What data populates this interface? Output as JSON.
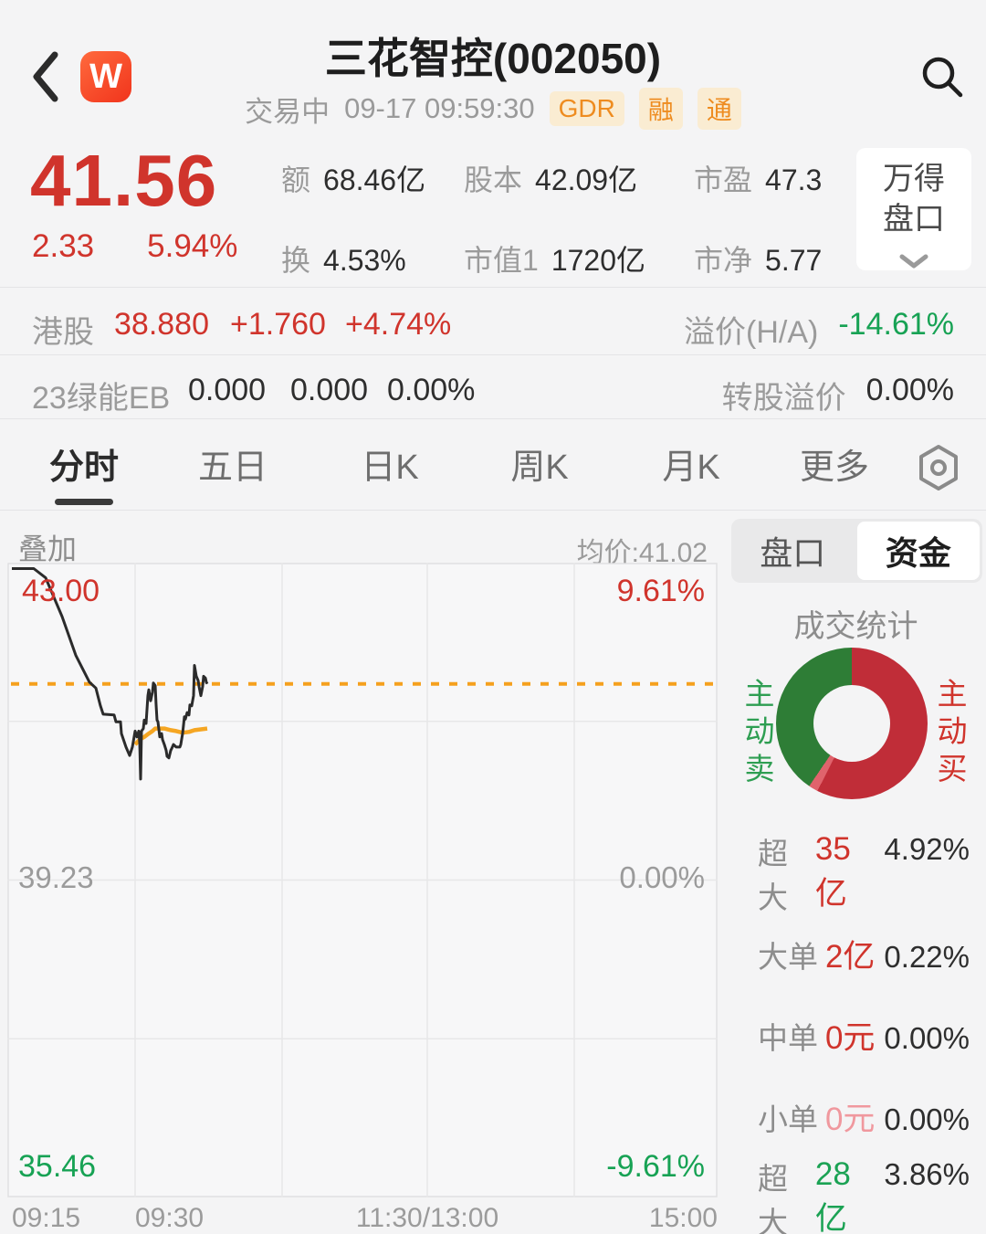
{
  "header": {
    "logo_text": "W",
    "title": "三花智控(002050)",
    "status": "交易中",
    "datetime": "09-17 09:59:30",
    "badges": [
      "GDR",
      "融",
      "通"
    ]
  },
  "quote": {
    "price": "41.56",
    "change": "2.33",
    "change_pct": "5.94%",
    "stats": [
      {
        "label": "额",
        "value": "68.46亿"
      },
      {
        "label": "股本",
        "value": "42.09亿"
      },
      {
        "label": "市盈",
        "value": "47.3"
      },
      {
        "label": "换",
        "value": "4.53%"
      },
      {
        "label": "市值1",
        "value": "1720亿"
      },
      {
        "label": "市净",
        "value": "5.77"
      }
    ],
    "wind_box": {
      "line1": "万得",
      "line2": "盘口"
    }
  },
  "hk_row": {
    "label": "港股",
    "price": "38.880",
    "change": "+1.760",
    "change_pct": "+4.74%",
    "premium_label": "溢价(H/A)",
    "premium_value": "-14.61%"
  },
  "eb_row": {
    "label": "23绿能EB",
    "v1": "0.000",
    "v2": "0.000",
    "v3": "0.00%",
    "premium_label": "转股溢价",
    "premium_value": "0.00%"
  },
  "tabs": {
    "items": [
      {
        "label": "分时"
      },
      {
        "label": "五日"
      },
      {
        "label": "日K"
      },
      {
        "label": "周K"
      },
      {
        "label": "月K"
      },
      {
        "label": "更多"
      }
    ],
    "active_index": 0
  },
  "chart_data": {
    "type": "line",
    "title": "minute price chart (分时)",
    "overlay_label": "叠加",
    "avg_label": "均价:41.02",
    "current_price": 41.56,
    "prev_close": 39.23,
    "y_axis": {
      "max": 43.0,
      "mid": 39.23,
      "min": 35.46,
      "max_label": "43.00",
      "max_pct_label": "9.61%",
      "mid_label": "39.23",
      "mid_pct_label": "0.00%",
      "min_label": "35.46",
      "min_pct_label": "-9.61%"
    },
    "x_ticks": [
      "09:15",
      "09:30",
      "11:30/13:00",
      "15:00"
    ],
    "grid": {
      "v": [
        140,
        301,
        460,
        621
      ],
      "h": [
        0.25,
        0.5,
        0.75
      ]
    },
    "price_line": [
      [
        5,
        42.93
      ],
      [
        29,
        42.93
      ],
      [
        42,
        42.82
      ],
      [
        60,
        42.36
      ],
      [
        75,
        41.9
      ],
      [
        90,
        41.58
      ],
      [
        97,
        41.51
      ],
      [
        102,
        41.3
      ],
      [
        105,
        41.2
      ],
      [
        117,
        41.19
      ],
      [
        119,
        41.11
      ],
      [
        124,
        41.11
      ],
      [
        125,
        40.97
      ],
      [
        130,
        40.81
      ],
      [
        134,
        40.71
      ],
      [
        137,
        40.81
      ],
      [
        140,
        41.0
      ],
      [
        142,
        40.93
      ],
      [
        144,
        41.0
      ],
      [
        145,
        40.86
      ],
      [
        146,
        40.43
      ],
      [
        147,
        41.0
      ],
      [
        149,
        41.03
      ],
      [
        150,
        41.13
      ],
      [
        152,
        41.09
      ],
      [
        154,
        41.42
      ],
      [
        155,
        41.49
      ],
      [
        157,
        41.36
      ],
      [
        159,
        41.46
      ],
      [
        160,
        41.57
      ],
      [
        162,
        41.54
      ],
      [
        163,
        41.31
      ],
      [
        164,
        41.13
      ],
      [
        165,
        41.11
      ],
      [
        167,
        40.93
      ],
      [
        169,
        40.97
      ],
      [
        170,
        40.9
      ],
      [
        172,
        40.84
      ],
      [
        174,
        40.77
      ],
      [
        175,
        40.7
      ],
      [
        177,
        40.68
      ],
      [
        179,
        40.77
      ],
      [
        180,
        40.79
      ],
      [
        182,
        40.84
      ],
      [
        185,
        40.81
      ],
      [
        189,
        40.81
      ],
      [
        190,
        40.84
      ],
      [
        192,
        40.97
      ],
      [
        194,
        41.17
      ],
      [
        195,
        41.14
      ],
      [
        197,
        41.22
      ],
      [
        199,
        41.19
      ],
      [
        200,
        41.31
      ],
      [
        202,
        41.3
      ],
      [
        204,
        41.42
      ],
      [
        205,
        41.78
      ],
      [
        207,
        41.65
      ],
      [
        209,
        41.6
      ],
      [
        210,
        41.53
      ],
      [
        212,
        41.42
      ],
      [
        214,
        41.53
      ],
      [
        215,
        41.65
      ],
      [
        217,
        41.63
      ],
      [
        218,
        41.58
      ],
      [
        219,
        41.56
      ]
    ],
    "avg_line": [
      [
        140,
        40.84
      ],
      [
        145,
        40.9
      ],
      [
        150,
        40.93
      ],
      [
        155,
        40.97
      ],
      [
        159,
        41.0
      ],
      [
        162,
        41.03
      ],
      [
        167,
        41.03
      ],
      [
        172,
        41.03
      ],
      [
        179,
        41.01
      ],
      [
        185,
        41.0
      ],
      [
        192,
        40.98
      ],
      [
        199,
        40.99
      ],
      [
        205,
        41.01
      ],
      [
        212,
        41.02
      ],
      [
        219,
        41.03
      ]
    ]
  },
  "funds_panel": {
    "tabs": [
      {
        "label": "盘口"
      },
      {
        "label": "资金"
      }
    ],
    "active_tab": 1,
    "title": "成交统计",
    "donut": {
      "segments": [
        {
          "name": "active-buy",
          "pct": 57.5,
          "color": "#c02d38"
        },
        {
          "name": "sliver",
          "pct": 2.0,
          "color": "#e0636c"
        },
        {
          "name": "active-sell",
          "pct": 40.5,
          "color": "#2e7d36"
        }
      ],
      "left_label": "主动卖",
      "right_label": "主动买"
    },
    "rows": [
      {
        "label": "超大",
        "value": "35亿",
        "value_class": "val-red",
        "pct": "4.92%"
      },
      {
        "label": "大单",
        "value": "2亿",
        "value_class": "val-red",
        "pct": "0.22%"
      },
      {
        "label": "中单",
        "value": "0元",
        "value_class": "val-red",
        "pct": "0.00%"
      },
      {
        "label": "小单",
        "value": "0元",
        "value_class": "val-pink",
        "pct": "0.00%"
      },
      {
        "label": "超大",
        "value": "28亿",
        "value_class": "val-green",
        "pct": "3.86%"
      }
    ]
  },
  "colors": {
    "up_red": "#d0342c",
    "down_green": "#17a254",
    "orange": "#f5a01e",
    "price_line": "#2b2b2b",
    "avg_line": "#f5a623",
    "grid": "#e7e7e8",
    "plot_bg": "#f7f7f8",
    "plot_border": "#e0e0e2"
  }
}
